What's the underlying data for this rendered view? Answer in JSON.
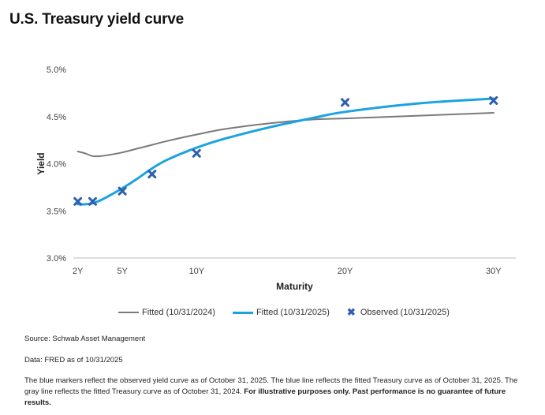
{
  "title": "U.S. Treasury yield curve",
  "chart_data": {
    "type": "line",
    "title": "U.S. Treasury yield curve",
    "xlabel": "Maturity",
    "ylabel": "Yield",
    "x_ticks": [
      {
        "value": 2,
        "label": "2Y"
      },
      {
        "value": 5,
        "label": "5Y"
      },
      {
        "value": 10,
        "label": "10Y"
      },
      {
        "value": 20,
        "label": "20Y"
      },
      {
        "value": 30,
        "label": "30Y"
      }
    ],
    "y_ticks": [
      {
        "value": 3.0,
        "label": "3.0%"
      },
      {
        "value": 3.5,
        "label": "3.5%"
      },
      {
        "value": 4.0,
        "label": "4.0%"
      },
      {
        "value": 4.5,
        "label": "4.5%"
      },
      {
        "value": 5.0,
        "label": "5.0%"
      }
    ],
    "xlim": [
      1.7,
      31.5
    ],
    "ylim": [
      3.0,
      5.0
    ],
    "grid": false,
    "legend_position": "bottom",
    "series": [
      {
        "name": "Fitted (10/31/2024)",
        "kind": "line",
        "color": "#7a7a7a",
        "x": [
          2,
          2.5,
          3,
          3.5,
          4,
          5,
          6,
          7,
          8,
          10,
          12,
          15,
          18,
          20,
          25,
          30
        ],
        "y": [
          4.13,
          4.11,
          4.08,
          4.08,
          4.09,
          4.12,
          4.16,
          4.2,
          4.24,
          4.31,
          4.37,
          4.43,
          4.47,
          4.48,
          4.51,
          4.54
        ]
      },
      {
        "name": "Fitted (10/31/2025)",
        "kind": "line",
        "color": "#1aa3e0",
        "x": [
          2,
          2.5,
          3,
          3.5,
          4,
          5,
          6,
          7,
          8,
          10,
          12,
          15,
          18,
          20,
          25,
          30
        ],
        "y": [
          3.57,
          3.57,
          3.58,
          3.61,
          3.65,
          3.74,
          3.84,
          3.95,
          4.04,
          4.17,
          4.27,
          4.39,
          4.49,
          4.55,
          4.64,
          4.69
        ]
      },
      {
        "name": "Observed (10/31/2025)",
        "kind": "scatter",
        "color": "#2f5fb0",
        "x": [
          2,
          3,
          5,
          7,
          10,
          20,
          30
        ],
        "y": [
          3.6,
          3.6,
          3.71,
          3.89,
          4.11,
          4.65,
          4.67
        ]
      }
    ]
  },
  "legend": {
    "items": [
      {
        "label": "Fitted (10/31/2024)"
      },
      {
        "label": "Fitted (10/31/2025)"
      },
      {
        "label": "Observed (10/31/2025)"
      }
    ]
  },
  "notes": {
    "source": "Source: Schwab Asset Management",
    "data": "Data: FRED as of 10/31/2025",
    "description": "The blue markers reflect the observed yield curve as of October 31, 2025. The blue line reflects the fitted Treasury curve as of October 31, 2025. The gray line reflects the fitted Treasury curve as of October 31, 2024.",
    "disclaimer": "For illustrative purposes only. Past performance is no guarantee of future results."
  }
}
